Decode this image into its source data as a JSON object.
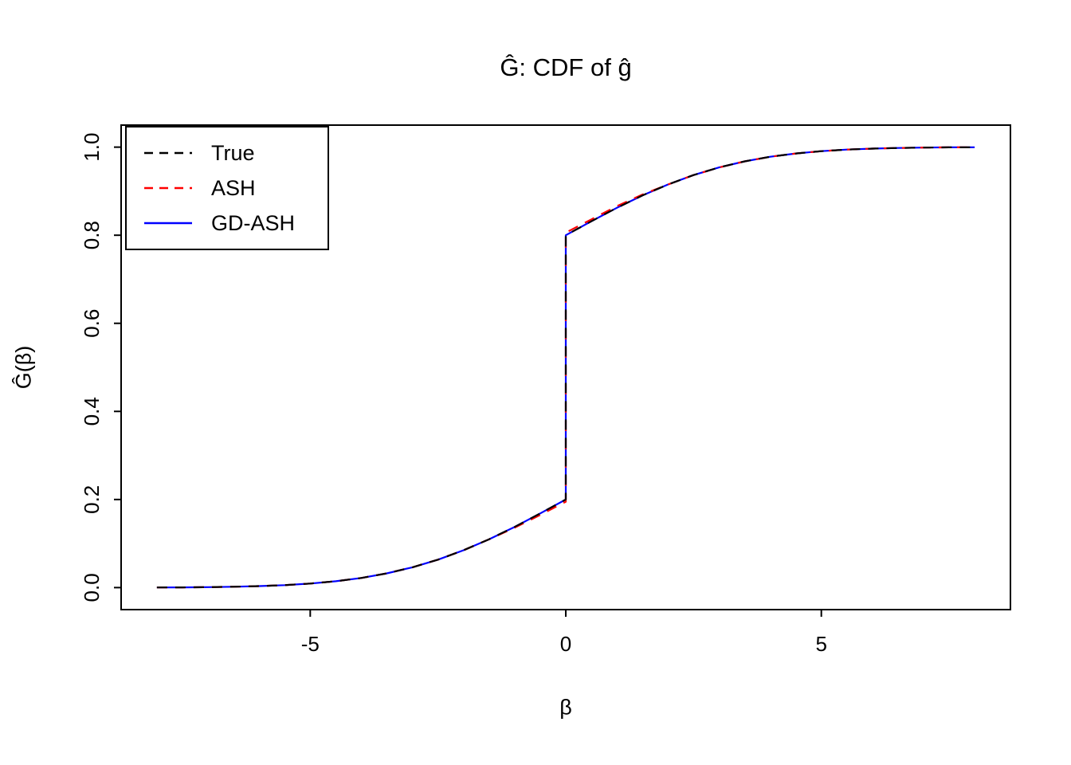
{
  "chart_data": {
    "type": "line",
    "title": "Ĝ: CDF of ĝ",
    "xlabel": "β",
    "ylabel": "Ĝ(β)",
    "xlim": [
      -8.7,
      8.7
    ],
    "ylim": [
      -0.05,
      1.05
    ],
    "grid": false,
    "legend_position": "top-left",
    "xticks": [
      {
        "v": -5,
        "label": "-5"
      },
      {
        "v": 0,
        "label": "0"
      },
      {
        "v": 5,
        "label": "5"
      }
    ],
    "yticks": [
      {
        "v": 0.0,
        "label": "0.0"
      },
      {
        "v": 0.2,
        "label": "0.2"
      },
      {
        "v": 0.4,
        "label": "0.4"
      },
      {
        "v": 0.6,
        "label": "0.6"
      },
      {
        "v": 0.8,
        "label": "0.8"
      },
      {
        "v": 1.0,
        "label": "1.0"
      }
    ],
    "x": [
      -8,
      -7.5,
      -7,
      -6.5,
      -6,
      -5.5,
      -5,
      -4.5,
      -4,
      -3.5,
      -3,
      -2.5,
      -2,
      -1.5,
      -1,
      -0.5,
      0,
      0,
      0.5,
      1,
      1.5,
      2,
      2.5,
      3,
      3.5,
      4,
      4.5,
      5,
      5.5,
      6,
      6.5,
      7,
      7.5,
      8
    ],
    "series": [
      {
        "name": "True",
        "color": "#000000",
        "style": "dashed",
        "dash": [
          13,
          10
        ],
        "y": [
          0.0003,
          0.0005,
          0.001,
          0.0019,
          0.0033,
          0.0056,
          0.0091,
          0.0144,
          0.0219,
          0.0323,
          0.046,
          0.0635,
          0.0847,
          0.1097,
          0.1378,
          0.1683,
          0.2,
          0.8,
          0.8317,
          0.8622,
          0.8903,
          0.9153,
          0.9365,
          0.954,
          0.9677,
          0.9781,
          0.9856,
          0.9909,
          0.9944,
          0.9967,
          0.9981,
          0.999,
          0.9995,
          0.9997
        ]
      },
      {
        "name": "ASH",
        "color": "#FF0000",
        "style": "dashed",
        "dash": [
          13,
          10
        ],
        "y": [
          0.0003,
          0.0005,
          0.001,
          0.0019,
          0.0033,
          0.0056,
          0.0091,
          0.0144,
          0.0219,
          0.0323,
          0.046,
          0.0635,
          0.0847,
          0.1097,
          0.136,
          0.165,
          0.195,
          0.806,
          0.836,
          0.866,
          0.8925,
          0.9153,
          0.9365,
          0.954,
          0.9677,
          0.9781,
          0.9856,
          0.9909,
          0.9944,
          0.9967,
          0.9981,
          0.999,
          0.9995,
          0.9997
        ]
      },
      {
        "name": "GD-ASH",
        "color": "#0000FF",
        "style": "solid",
        "dash": null,
        "y": [
          0.0003,
          0.0005,
          0.001,
          0.0019,
          0.0033,
          0.0056,
          0.0091,
          0.0144,
          0.0219,
          0.0323,
          0.046,
          0.0635,
          0.0847,
          0.1097,
          0.1378,
          0.1683,
          0.2,
          0.8,
          0.8317,
          0.8622,
          0.8903,
          0.9153,
          0.9365,
          0.954,
          0.9677,
          0.9781,
          0.9856,
          0.9909,
          0.9944,
          0.9967,
          0.9981,
          0.999,
          0.9995,
          0.9997
        ]
      }
    ]
  }
}
